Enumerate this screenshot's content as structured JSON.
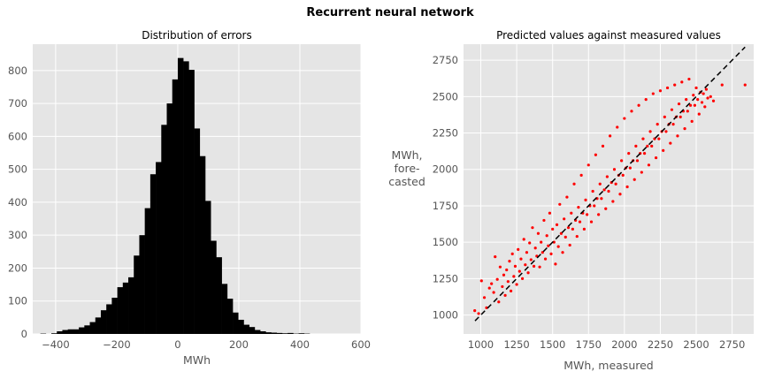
{
  "suptitle": "Recurrent neural network",
  "colors": {
    "panel_bg": "#e5e5e5",
    "grid": "#ffffff",
    "histogram": "#000000",
    "scatter": "#ff0000",
    "ideal_line": "#000000",
    "tick_text": "#555555"
  },
  "chart_data": [
    {
      "type": "bar",
      "subtype": "histogram",
      "title": "Distribution of errors",
      "xlabel": "MWh",
      "ylabel": "",
      "xlim": [
        -475,
        600
      ],
      "ylim": [
        0,
        880
      ],
      "xticks": [
        -400,
        -200,
        0,
        200,
        400,
        600
      ],
      "xtick_labels": [
        "−400",
        "−200",
        "0",
        "200",
        "400",
        "600"
      ],
      "yticks": [
        0,
        100,
        200,
        300,
        400,
        500,
        600,
        700,
        800
      ],
      "ytick_labels": [
        "0",
        "100",
        "200",
        "300",
        "400",
        "500",
        "600",
        "700",
        "800"
      ],
      "grid": true,
      "bin_width": 18,
      "bin_start": -450,
      "values": [
        1,
        0,
        2,
        8,
        12,
        14,
        14,
        20,
        26,
        36,
        50,
        72,
        90,
        110,
        142,
        156,
        172,
        238,
        300,
        382,
        485,
        522,
        635,
        700,
        773,
        838,
        828,
        802,
        624,
        540,
        404,
        283,
        233,
        152,
        107,
        65,
        43,
        28,
        21,
        12,
        8,
        5,
        4,
        3,
        2,
        3,
        1,
        2,
        1,
        0
      ]
    },
    {
      "type": "scatter",
      "title": "Predicted values against measured values",
      "xlabel": "MWh, measured",
      "ylabel": "MWh,\nfore-\ncasted",
      "ylabel_lines": [
        "MWh,",
        "fore-",
        "casted"
      ],
      "xlim": [
        880,
        2900
      ],
      "ylim": [
        870,
        2860
      ],
      "xticks": [
        1000,
        1250,
        1500,
        1750,
        2000,
        2250,
        2500,
        2750
      ],
      "xtick_labels": [
        "1000",
        "1250",
        "1500",
        "1750",
        "2000",
        "2250",
        "2500",
        "2750"
      ],
      "yticks": [
        1000,
        1250,
        1500,
        1750,
        2000,
        2250,
        2500,
        2750
      ],
      "ytick_labels": [
        "1000",
        "1250",
        "1500",
        "1750",
        "2000",
        "2250",
        "2500",
        "2750"
      ],
      "grid": true,
      "reference_line": {
        "style": "dashed",
        "x": [
          960,
          2840
        ],
        "y": [
          960,
          2840
        ]
      },
      "points": [
        [
          958,
          1030
        ],
        [
          985,
          1010
        ],
        [
          1005,
          1235
        ],
        [
          1025,
          1120
        ],
        [
          1040,
          1050
        ],
        [
          1060,
          1185
        ],
        [
          1075,
          1215
        ],
        [
          1090,
          1155
        ],
        [
          1100,
          1400
        ],
        [
          1115,
          1245
        ],
        [
          1125,
          1090
        ],
        [
          1135,
          1330
        ],
        [
          1150,
          1195
        ],
        [
          1160,
          1275
        ],
        [
          1170,
          1135
        ],
        [
          1180,
          1310
        ],
        [
          1190,
          1230
        ],
        [
          1200,
          1370
        ],
        [
          1210,
          1165
        ],
        [
          1220,
          1420
        ],
        [
          1230,
          1265
        ],
        [
          1240,
          1335
        ],
        [
          1250,
          1210
        ],
        [
          1260,
          1450
        ],
        [
          1270,
          1300
        ],
        [
          1280,
          1385
        ],
        [
          1290,
          1250
        ],
        [
          1300,
          1520
        ],
        [
          1310,
          1345
        ],
        [
          1320,
          1430
        ],
        [
          1330,
          1290
        ],
        [
          1340,
          1495
        ],
        [
          1350,
          1380
        ],
        [
          1360,
          1600
        ],
        [
          1370,
          1335
        ],
        [
          1380,
          1460
        ],
        [
          1390,
          1405
        ],
        [
          1400,
          1560
        ],
        [
          1410,
          1330
        ],
        [
          1420,
          1500
        ],
        [
          1430,
          1430
        ],
        [
          1440,
          1650
        ],
        [
          1450,
          1385
        ],
        [
          1460,
          1545
        ],
        [
          1470,
          1475
        ],
        [
          1480,
          1700
        ],
        [
          1490,
          1420
        ],
        [
          1500,
          1590
        ],
        [
          1510,
          1500
        ],
        [
          1520,
          1350
        ],
        [
          1530,
          1620
        ],
        [
          1540,
          1470
        ],
        [
          1550,
          1760
        ],
        [
          1560,
          1560
        ],
        [
          1570,
          1430
        ],
        [
          1580,
          1660
        ],
        [
          1590,
          1535
        ],
        [
          1600,
          1810
        ],
        [
          1610,
          1600
        ],
        [
          1620,
          1480
        ],
        [
          1630,
          1700
        ],
        [
          1640,
          1590
        ],
        [
          1650,
          1900
        ],
        [
          1660,
          1650
        ],
        [
          1670,
          1540
        ],
        [
          1680,
          1740
        ],
        [
          1690,
          1640
        ],
        [
          1700,
          1960
        ],
        [
          1710,
          1700
        ],
        [
          1720,
          1590
        ],
        [
          1730,
          1790
        ],
        [
          1740,
          1690
        ],
        [
          1750,
          2030
        ],
        [
          1760,
          1750
        ],
        [
          1770,
          1640
        ],
        [
          1780,
          1850
        ],
        [
          1790,
          1750
        ],
        [
          1800,
          2100
        ],
        [
          1810,
          1800
        ],
        [
          1820,
          1690
        ],
        [
          1830,
          1900
        ],
        [
          1840,
          1800
        ],
        [
          1850,
          2160
        ],
        [
          1860,
          1860
        ],
        [
          1870,
          1730
        ],
        [
          1880,
          1950
        ],
        [
          1890,
          1850
        ],
        [
          1900,
          2230
        ],
        [
          1910,
          1910
        ],
        [
          1920,
          1780
        ],
        [
          1930,
          2000
        ],
        [
          1940,
          1900
        ],
        [
          1950,
          2290
        ],
        [
          1960,
          1960
        ],
        [
          1970,
          1830
        ],
        [
          1980,
          2060
        ],
        [
          1990,
          1960
        ],
        [
          2000,
          2350
        ],
        [
          2010,
          2010
        ],
        [
          2020,
          1880
        ],
        [
          2030,
          2110
        ],
        [
          2040,
          2010
        ],
        [
          2050,
          2400
        ],
        [
          2060,
          2060
        ],
        [
          2070,
          1930
        ],
        [
          2080,
          2160
        ],
        [
          2090,
          2060
        ],
        [
          2100,
          2440
        ],
        [
          2110,
          2110
        ],
        [
          2120,
          1980
        ],
        [
          2130,
          2210
        ],
        [
          2140,
          2110
        ],
        [
          2150,
          2480
        ],
        [
          2160,
          2160
        ],
        [
          2170,
          2030
        ],
        [
          2180,
          2260
        ],
        [
          2190,
          2160
        ],
        [
          2200,
          2520
        ],
        [
          2210,
          2210
        ],
        [
          2220,
          2080
        ],
        [
          2230,
          2310
        ],
        [
          2240,
          2210
        ],
        [
          2250,
          2540
        ],
        [
          2260,
          2260
        ],
        [
          2270,
          2130
        ],
        [
          2280,
          2360
        ],
        [
          2290,
          2260
        ],
        [
          2300,
          2560
        ],
        [
          2310,
          2310
        ],
        [
          2320,
          2180
        ],
        [
          2330,
          2410
        ],
        [
          2340,
          2310
        ],
        [
          2350,
          2580
        ],
        [
          2360,
          2360
        ],
        [
          2370,
          2230
        ],
        [
          2380,
          2450
        ],
        [
          2390,
          2360
        ],
        [
          2400,
          2600
        ],
        [
          2410,
          2400
        ],
        [
          2420,
          2280
        ],
        [
          2430,
          2480
        ],
        [
          2440,
          2400
        ],
        [
          2450,
          2620
        ],
        [
          2460,
          2440
        ],
        [
          2470,
          2330
        ],
        [
          2480,
          2510
        ],
        [
          2490,
          2440
        ],
        [
          2500,
          2560
        ],
        [
          2510,
          2480
        ],
        [
          2520,
          2380
        ],
        [
          2530,
          2530
        ],
        [
          2540,
          2460
        ],
        [
          2550,
          2520
        ],
        [
          2560,
          2430
        ],
        [
          2570,
          2550
        ],
        [
          2580,
          2490
        ],
        [
          2600,
          2500
        ],
        [
          2620,
          2470
        ],
        [
          2680,
          2580
        ],
        [
          2840,
          2580
        ]
      ]
    }
  ]
}
